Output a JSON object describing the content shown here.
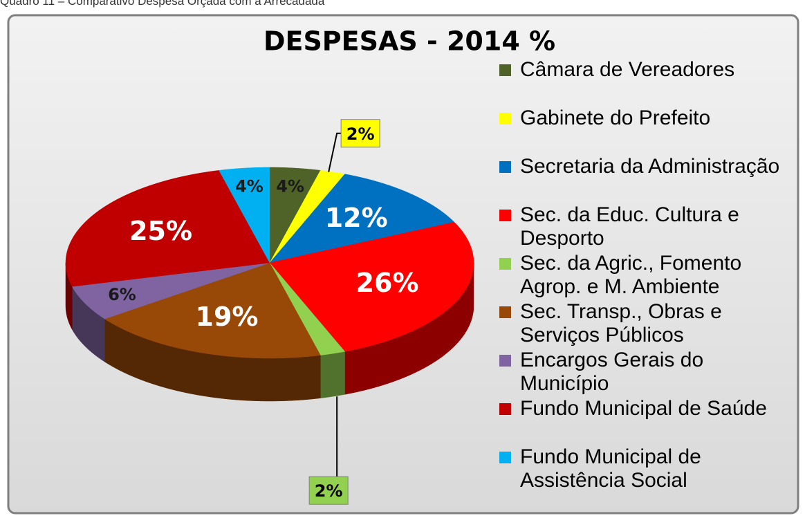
{
  "caption": "Quadro 11 – Comparativo Despesa Orçada com a Arrecadada",
  "chart_data": {
    "type": "pie3d",
    "title": "DESPESAS - 2014 %",
    "categories": [
      "Câmara de Vereadores",
      "Gabinete do Prefeito",
      "Secretaria da Administração",
      "Sec. da Educ. Cultura e Desporto",
      "Sec. da Agric., Fomento Agrop. e M. Ambiente",
      "Sec. Transp., Obras e Serviços Públicos",
      "Encargos Gerais do Município",
      "Fundo Municipal de Saúde",
      "Fundo Municipal de Assistência Social"
    ],
    "values": [
      4,
      2,
      12,
      26,
      2,
      19,
      6,
      25,
      4
    ],
    "value_labels": [
      "4%",
      "2%",
      "12%",
      "26%",
      "2%",
      "19%",
      "6%",
      "25%",
      "4%"
    ],
    "colors": [
      "#4f6228",
      "#ffff00",
      "#0070c0",
      "#ff0000",
      "#92d050",
      "#984807",
      "#8064a2",
      "#c00000",
      "#00b0f0"
    ],
    "legend": "right"
  }
}
